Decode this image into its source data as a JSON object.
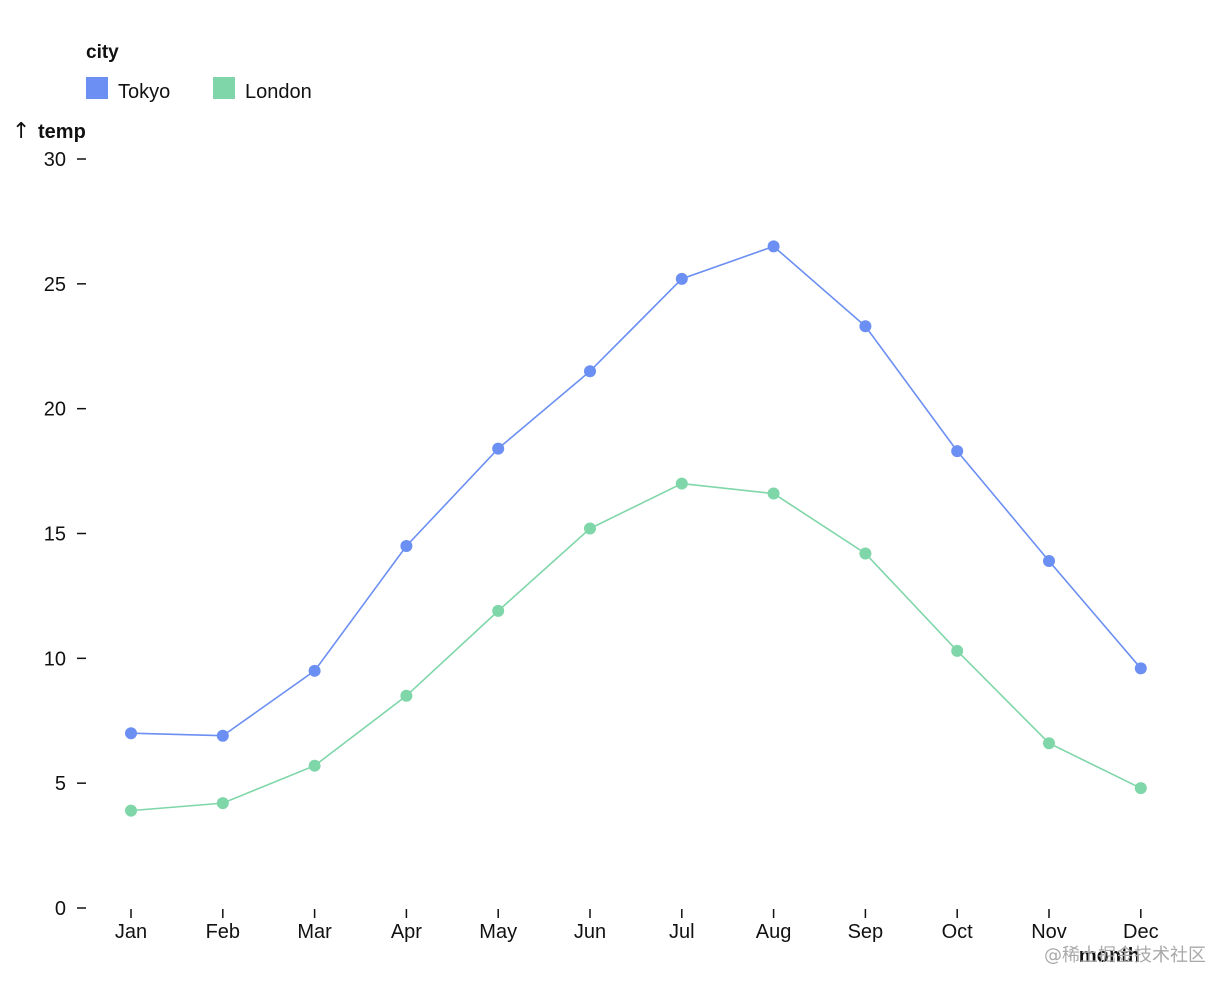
{
  "chart_data": {
    "type": "line",
    "xlabel": "month",
    "ylabel": "temp",
    "ylim": [
      0,
      30
    ],
    "yticks": [
      0,
      5,
      10,
      15,
      20,
      25,
      30
    ],
    "categories": [
      "Jan",
      "Feb",
      "Mar",
      "Apr",
      "May",
      "Jun",
      "Jul",
      "Aug",
      "Sep",
      "Oct",
      "Nov",
      "Dec"
    ],
    "legend": {
      "title": "city",
      "position": "top-left"
    },
    "grid": false,
    "series": [
      {
        "name": "Tokyo",
        "color": "#6b8ff2",
        "values": [
          7.0,
          6.9,
          9.5,
          14.5,
          18.4,
          21.5,
          25.2,
          26.5,
          23.3,
          18.3,
          13.9,
          9.6
        ]
      },
      {
        "name": "London",
        "color": "#7fd6a8",
        "values": [
          3.9,
          4.2,
          5.7,
          8.5,
          11.9,
          15.2,
          17.0,
          16.6,
          14.2,
          10.3,
          6.6,
          4.8
        ]
      }
    ]
  },
  "watermark": "@稀土掘金技术社区"
}
